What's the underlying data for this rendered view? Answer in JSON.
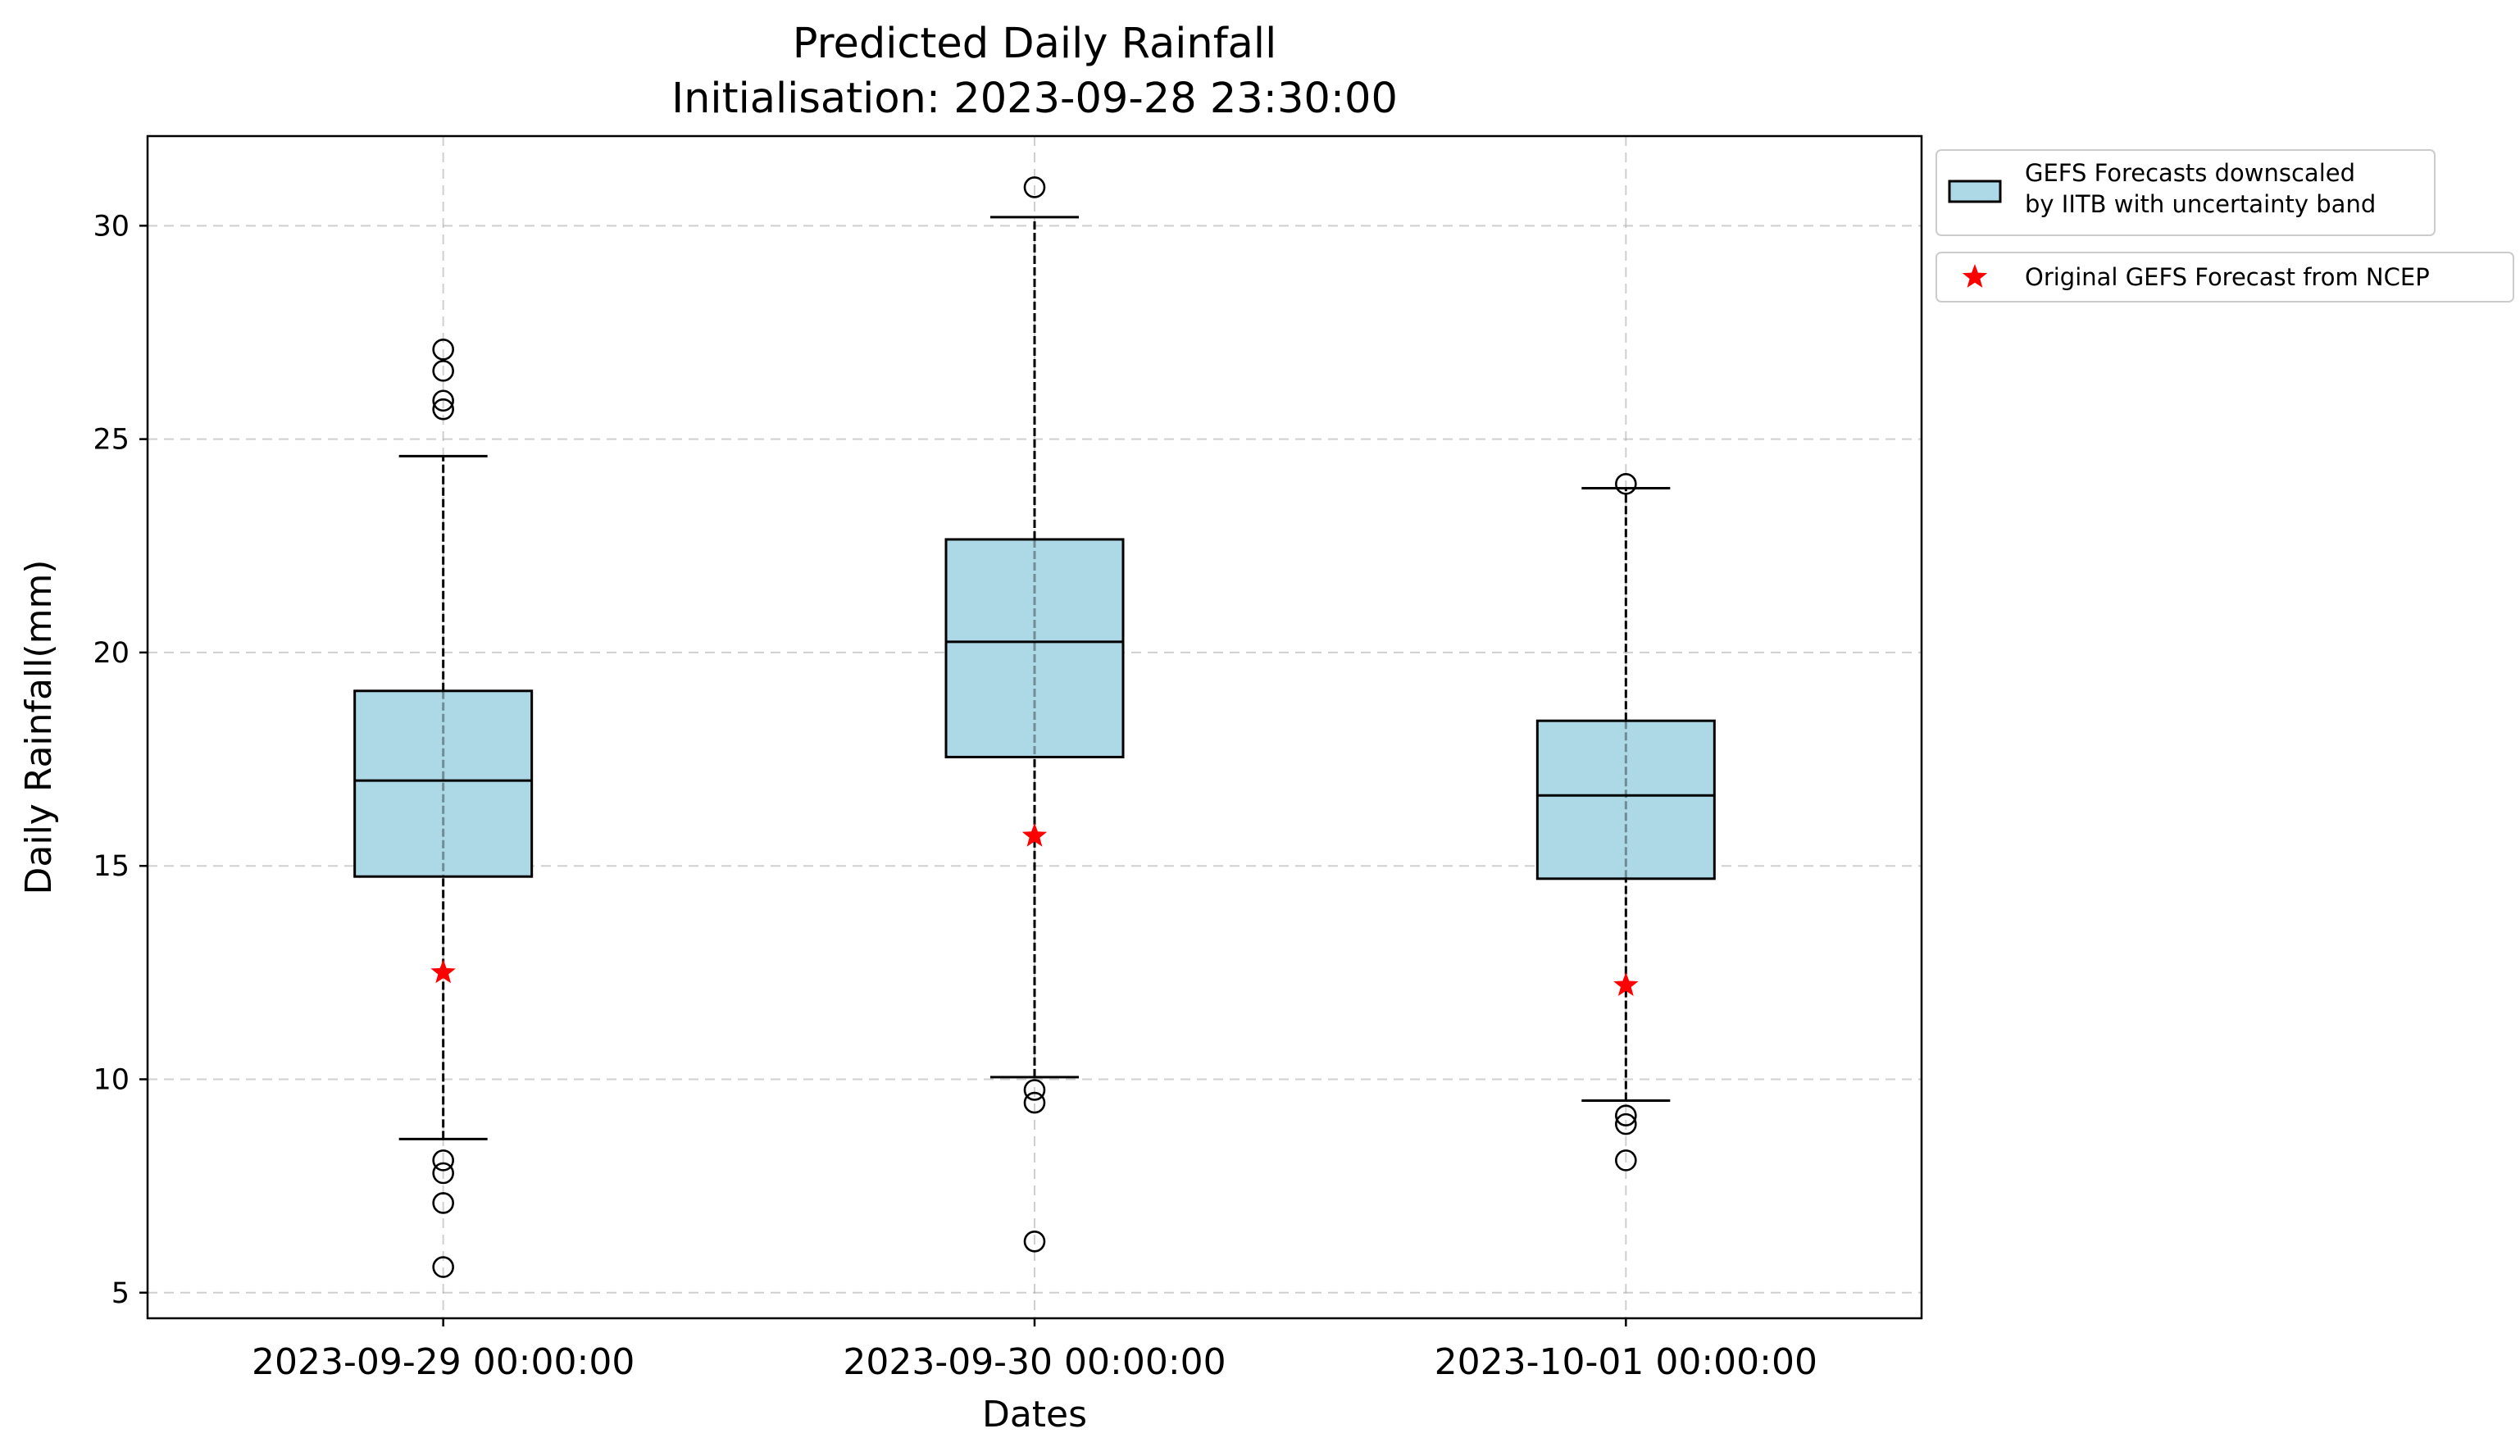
{
  "chart_data": {
    "type": "box",
    "title": "Predicted Daily Rainfall",
    "subtitle": "Initialisation: 2023-09-28 23:30:00",
    "xlabel": "Dates",
    "ylabel": "Daily Rainfall(mm)",
    "ylim": [
      4.4,
      32.1
    ],
    "yticks": [
      5,
      10,
      15,
      20,
      25,
      30
    ],
    "categories": [
      "2023-09-29 00:00:00",
      "2023-09-30 00:00:00",
      "2023-10-01 00:00:00"
    ],
    "grid": true,
    "legend": {
      "placement": "outside-top-right",
      "box_entry": [
        "GEFS Forecasts downscaled",
        "by IITB with uncertainty band"
      ],
      "star_entry": "Original GEFS Forecast from NCEP"
    },
    "series": [
      {
        "kind": "boxplot",
        "color": "#add8e6",
        "boxes": [
          {
            "whislo": 8.6,
            "q1": 14.75,
            "median": 17.0,
            "q3": 19.1,
            "whishi": 24.6,
            "fliers": [
              27.1,
              26.6,
              25.9,
              25.7,
              8.1,
              7.8,
              7.1,
              5.6
            ]
          },
          {
            "whislo": 10.05,
            "q1": 17.55,
            "median": 20.25,
            "q3": 22.65,
            "whishi": 30.2,
            "fliers": [
              30.9,
              9.75,
              9.45,
              6.2
            ]
          },
          {
            "whislo": 9.5,
            "q1": 14.7,
            "median": 16.65,
            "q3": 18.4,
            "whishi": 23.85,
            "fliers": [
              23.95,
              9.15,
              8.95,
              8.1
            ]
          }
        ]
      },
      {
        "kind": "scatter",
        "marker": "star",
        "color": "#ff0000",
        "values": [
          12.5,
          15.7,
          12.2
        ]
      }
    ]
  }
}
